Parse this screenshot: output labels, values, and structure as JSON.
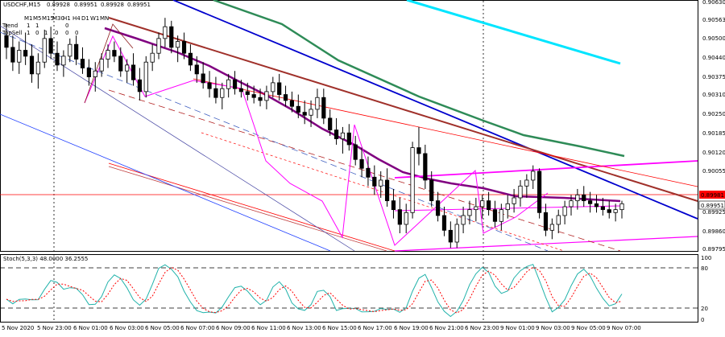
{
  "symbol_info": {
    "symbol": "USDCHF,M15",
    "open": "0.89928",
    "high": "0.89951",
    "low": "0.89928",
    "close": "0.89951"
  },
  "timeframes": {
    "labels": [
      "M1",
      "M5",
      "M15",
      "M30",
      "H1",
      "H4",
      "D1",
      "W1",
      "MN"
    ],
    "row1_label": "Trend",
    "row1_values": [
      "1",
      "1",
      "",
      "",
      "0",
      "",
      "",
      "",
      ""
    ],
    "row2_label": "TopSell",
    "row2_values": [
      "1",
      "0",
      "1",
      "0",
      "0",
      "0",
      "",
      "",
      ""
    ]
  },
  "price_axis": {
    "labels": [
      "0.90630",
      "0.90563",
      "0.90500",
      "0.90440",
      "0.90375",
      "0.90310",
      "0.90250",
      "0.90185",
      "0.90120",
      "0.90055",
      "0.89992",
      "0.89925",
      "0.89860",
      "0.89795"
    ],
    "highlight_label": "0.89981",
    "current_label": "0.89951",
    "highlight_color": "#ff0000",
    "current_color": "#ffffff"
  },
  "time_axis": {
    "labels": [
      "5 Nov 2020",
      "5 Nov 23:00",
      "6 Nov 01:00",
      "6 Nov 03:00",
      "6 Nov 05:00",
      "6 Nov 07:00",
      "6 Nov 09:00",
      "6 Nov 11:00",
      "6 Nov 13:00",
      "6 Nov 15:00",
      "6 Nov 17:00",
      "6 Nov 19:00",
      "6 Nov 21:00",
      "6 Nov 23:00",
      "9 Nov 01:00",
      "9 Nov 03:00",
      "9 Nov 05:00",
      "9 Nov 07:00"
    ]
  },
  "stochastic": {
    "label": "Stoch(5,3,3) 48.0000 36.2555",
    "axis_labels": [
      "100",
      "80",
      "20",
      "0"
    ],
    "main_color": "#20b2aa",
    "signal_color": "#ff0000"
  },
  "colors": {
    "bull_candle": "#000000",
    "bear_candle": "#000000",
    "ma_fast": "#800080",
    "ma_mid": "#8b0000",
    "ma_slow_green": "#2e8b57",
    "ma_blue": "#0000cd",
    "ma_cyan": "#00e5ff",
    "channel_magenta": "#ff00ff",
    "channel_red": "#ff0000"
  },
  "chart_data": {
    "type": "candlestick",
    "title": "USDCHF,M15",
    "ylim": [
      0.8979,
      0.90635
    ],
    "candles": [
      [
        0.9052,
        0.9056,
        0.9044,
        0.9048
      ],
      [
        0.9048,
        0.9052,
        0.904,
        0.9043
      ],
      [
        0.9043,
        0.905,
        0.9039,
        0.9047
      ],
      [
        0.9047,
        0.9053,
        0.9042,
        0.9045
      ],
      [
        0.9045,
        0.9049,
        0.9036,
        0.9039
      ],
      [
        0.9039,
        0.9046,
        0.9034,
        0.9043
      ],
      [
        0.9043,
        0.9054,
        0.9041,
        0.9051
      ],
      [
        0.9051,
        0.9055,
        0.9044,
        0.9046
      ],
      [
        0.9046,
        0.905,
        0.904,
        0.9042
      ],
      [
        0.9042,
        0.9047,
        0.9038,
        0.9045
      ],
      [
        0.9045,
        0.9051,
        0.9043,
        0.9049
      ],
      [
        0.9049,
        0.9052,
        0.9042,
        0.9044
      ],
      [
        0.9044,
        0.9048,
        0.9039,
        0.9041
      ],
      [
        0.9041,
        0.9044,
        0.9035,
        0.9038
      ],
      [
        0.9038,
        0.9043,
        0.9033,
        0.904
      ],
      [
        0.904,
        0.9046,
        0.9038,
        0.9044
      ],
      [
        0.9044,
        0.9049,
        0.9041,
        0.9047
      ],
      [
        0.9047,
        0.905,
        0.9043,
        0.9045
      ],
      [
        0.9045,
        0.9048,
        0.9038,
        0.904
      ],
      [
        0.904,
        0.9044,
        0.9036,
        0.9042
      ],
      [
        0.9042,
        0.9046,
        0.9035,
        0.9037
      ],
      [
        0.9037,
        0.9041,
        0.903,
        0.9033
      ],
      [
        0.9033,
        0.9045,
        0.9031,
        0.9043
      ],
      [
        0.9043,
        0.9049,
        0.904,
        0.9046
      ],
      [
        0.9046,
        0.9053,
        0.9044,
        0.9051
      ],
      [
        0.9051,
        0.9058,
        0.9048,
        0.9055
      ],
      [
        0.9055,
        0.9057,
        0.9046,
        0.9048
      ],
      [
        0.9048,
        0.9052,
        0.9043,
        0.905
      ],
      [
        0.905,
        0.9053,
        0.9044,
        0.9046
      ],
      [
        0.9046,
        0.9049,
        0.904,
        0.9042
      ],
      [
        0.9042,
        0.9045,
        0.9036,
        0.9039
      ],
      [
        0.9039,
        0.9043,
        0.9034,
        0.9036
      ],
      [
        0.9036,
        0.904,
        0.9031,
        0.9034
      ],
      [
        0.9034,
        0.9038,
        0.9029,
        0.9031
      ],
      [
        0.9031,
        0.9036,
        0.9027,
        0.9034
      ],
      [
        0.9034,
        0.9039,
        0.9031,
        0.9037
      ],
      [
        0.9037,
        0.904,
        0.9032,
        0.9034
      ],
      [
        0.9034,
        0.9037,
        0.9031,
        0.9033
      ],
      [
        0.9033,
        0.9036,
        0.903,
        0.9032
      ],
      [
        0.9032,
        0.9035,
        0.9029,
        0.9031
      ],
      [
        0.9031,
        0.9034,
        0.9028,
        0.903
      ],
      [
        0.903,
        0.9035,
        0.9027,
        0.9033
      ],
      [
        0.9033,
        0.9038,
        0.9031,
        0.9036
      ],
      [
        0.9036,
        0.9039,
        0.903,
        0.9032
      ],
      [
        0.9032,
        0.9035,
        0.9028,
        0.903
      ],
      [
        0.903,
        0.9033,
        0.9026,
        0.9028
      ],
      [
        0.9028,
        0.9032,
        0.9024,
        0.9026
      ],
      [
        0.9026,
        0.903,
        0.9022,
        0.9025
      ],
      [
        0.9025,
        0.903,
        0.9021,
        0.9027
      ],
      [
        0.9027,
        0.9034,
        0.9024,
        0.9031
      ],
      [
        0.9031,
        0.9034,
        0.9022,
        0.9024
      ],
      [
        0.9024,
        0.9027,
        0.9018,
        0.902
      ],
      [
        0.902,
        0.9024,
        0.9015,
        0.9017
      ],
      [
        0.9017,
        0.9021,
        0.9012,
        0.9019
      ],
      [
        0.9019,
        0.9022,
        0.9013,
        0.9015
      ],
      [
        0.9015,
        0.9018,
        0.9008,
        0.901
      ],
      [
        0.901,
        0.9014,
        0.9004,
        0.9007
      ],
      [
        0.9007,
        0.9011,
        0.9001,
        0.9004
      ],
      [
        0.9004,
        0.9008,
        0.8998,
        0.9001
      ],
      [
        0.9001,
        0.9006,
        0.8997,
        0.9003
      ],
      [
        0.9003,
        0.9007,
        0.8994,
        0.8996
      ],
      [
        0.8996,
        0.9,
        0.899,
        0.8993
      ],
      [
        0.8993,
        0.8997,
        0.8985,
        0.8988
      ],
      [
        0.8988,
        0.8995,
        0.8985,
        0.8992
      ],
      [
        0.8992,
        0.9016,
        0.899,
        0.9014
      ],
      [
        0.9014,
        0.9021,
        0.9008,
        0.9012
      ],
      [
        0.9012,
        0.9015,
        0.9,
        0.9003
      ],
      [
        0.9003,
        0.9006,
        0.8994,
        0.8996
      ],
      [
        0.8996,
        0.8999,
        0.8989,
        0.8991
      ],
      [
        0.8991,
        0.8994,
        0.8984,
        0.8986
      ],
      [
        0.8986,
        0.8989,
        0.898,
        0.8982
      ],
      [
        0.8982,
        0.899,
        0.898,
        0.8988
      ],
      [
        0.8988,
        0.8994,
        0.8985,
        0.8991
      ],
      [
        0.8991,
        0.8996,
        0.8988,
        0.8993
      ],
      [
        0.8993,
        0.8997,
        0.8989,
        0.8994
      ],
      [
        0.8994,
        0.8998,
        0.899,
        0.8996
      ],
      [
        0.8996,
        0.8999,
        0.8991,
        0.8993
      ],
      [
        0.8993,
        0.8996,
        0.8987,
        0.8989
      ],
      [
        0.8989,
        0.8995,
        0.8986,
        0.8993
      ],
      [
        0.8993,
        0.8998,
        0.899,
        0.8995
      ],
      [
        0.8995,
        0.9,
        0.8992,
        0.8997
      ],
      [
        0.8997,
        0.9003,
        0.8994,
        0.9001
      ],
      [
        0.9001,
        0.9005,
        0.8997,
        0.9003
      ],
      [
        0.9003,
        0.9008,
        0.9,
        0.9006
      ],
      [
        0.9006,
        0.9007,
        0.899,
        0.8992
      ],
      [
        0.8992,
        0.8995,
        0.8984,
        0.8986
      ],
      [
        0.8986,
        0.899,
        0.8983,
        0.8988
      ],
      [
        0.8988,
        0.8993,
        0.8985,
        0.8991
      ],
      [
        0.8991,
        0.8996,
        0.8988,
        0.8994
      ],
      [
        0.8994,
        0.8998,
        0.8991,
        0.8996
      ],
      [
        0.8996,
        0.9,
        0.8993,
        0.8998
      ],
      [
        0.8998,
        0.9001,
        0.8994,
        0.8996
      ],
      [
        0.8996,
        0.8999,
        0.8992,
        0.8995
      ],
      [
        0.8995,
        0.8998,
        0.8992,
        0.8994
      ],
      [
        0.8994,
        0.8997,
        0.8991,
        0.8993
      ],
      [
        0.8993,
        0.8996,
        0.899,
        0.8992
      ],
      [
        0.8992,
        0.8995,
        0.8989,
        0.8993
      ],
      [
        0.8993,
        0.8996,
        0.899,
        0.8995
      ]
    ]
  }
}
